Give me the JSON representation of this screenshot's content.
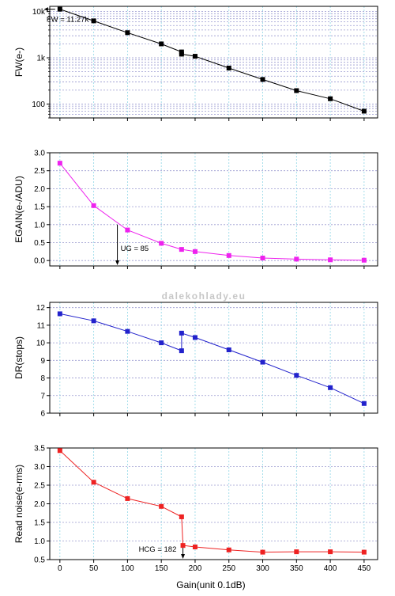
{
  "watermark": "dalekohlady.eu",
  "x_axis": {
    "label": "Gain(unit 0.1dB)",
    "ticks": [
      0,
      50,
      100,
      150,
      200,
      250,
      300,
      350,
      400,
      450
    ],
    "range": [
      -15,
      470
    ]
  },
  "chart_data": [
    {
      "type": "line",
      "ylabel": "FW(e-)",
      "scale": "log",
      "ylim": [
        50,
        13000
      ],
      "yticks": [
        {
          "v": 100,
          "label": "100"
        },
        {
          "v": 1000,
          "label": "1k"
        },
        {
          "v": 10000,
          "label": "10k"
        }
      ],
      "color": "#000000",
      "x": [
        0,
        50,
        100,
        150,
        180,
        180,
        200,
        250,
        300,
        350,
        400,
        450
      ],
      "y": [
        11270,
        6300,
        3500,
        2000,
        1340,
        1200,
        1080,
        600,
        340,
        195,
        130,
        70
      ],
      "annotation": {
        "text": "FW = 11.27k",
        "x": 0,
        "y": 11270
      }
    },
    {
      "type": "line",
      "ylabel": "EGAIN(e-/ADU)",
      "scale": "linear",
      "ylim": [
        -0.15,
        3.0
      ],
      "yticks": [
        {
          "v": 0,
          "label": "0.0"
        },
        {
          "v": 0.5,
          "label": "0.5"
        },
        {
          "v": 1,
          "label": "1.0"
        },
        {
          "v": 1.5,
          "label": "1.5"
        },
        {
          "v": 2,
          "label": "2.0"
        },
        {
          "v": 2.5,
          "label": "2.5"
        },
        {
          "v": 3,
          "label": "3.0"
        }
      ],
      "color": "#ee22ee",
      "x": [
        0,
        50,
        100,
        150,
        180,
        200,
        250,
        300,
        350,
        400,
        450
      ],
      "y": [
        2.71,
        1.53,
        0.85,
        0.48,
        0.31,
        0.25,
        0.14,
        0.07,
        0.04,
        0.02,
        0.01
      ],
      "annotation": {
        "text": "UG = 85",
        "x": 85,
        "y": 1.0
      }
    },
    {
      "type": "line",
      "ylabel": "DR(stops)",
      "scale": "linear",
      "ylim": [
        6,
        12.3
      ],
      "yticks": [
        {
          "v": 6,
          "label": "6"
        },
        {
          "v": 7,
          "label": "7"
        },
        {
          "v": 8,
          "label": "8"
        },
        {
          "v": 9,
          "label": "9"
        },
        {
          "v": 10,
          "label": "10"
        },
        {
          "v": 11,
          "label": "11"
        },
        {
          "v": 12,
          "label": "12"
        }
      ],
      "color": "#2222cc",
      "x": [
        0,
        50,
        100,
        150,
        180,
        180,
        200,
        250,
        300,
        350,
        400,
        450
      ],
      "y": [
        11.65,
        11.25,
        10.65,
        10.0,
        9.55,
        10.55,
        10.3,
        9.6,
        8.9,
        8.15,
        7.45,
        6.55
      ]
    },
    {
      "type": "line",
      "ylabel": "Read noise(e-rms)",
      "scale": "linear",
      "ylim": [
        0.5,
        3.5
      ],
      "yticks": [
        {
          "v": 0.5,
          "label": "0.5"
        },
        {
          "v": 1,
          "label": "1.0"
        },
        {
          "v": 1.5,
          "label": "1.5"
        },
        {
          "v": 2,
          "label": "2.0"
        },
        {
          "v": 2.5,
          "label": "2.5"
        },
        {
          "v": 3,
          "label": "3.0"
        },
        {
          "v": 3.5,
          "label": "3.5"
        }
      ],
      "color": "#ee2222",
      "x": [
        0,
        50,
        100,
        150,
        180,
        182,
        200,
        250,
        300,
        350,
        400,
        450
      ],
      "y": [
        3.43,
        2.58,
        2.14,
        1.93,
        1.65,
        0.88,
        0.84,
        0.76,
        0.7,
        0.71,
        0.71,
        0.7
      ],
      "annotation": {
        "text": "HCG = 182",
        "x": 182,
        "y": 0.88
      }
    }
  ]
}
